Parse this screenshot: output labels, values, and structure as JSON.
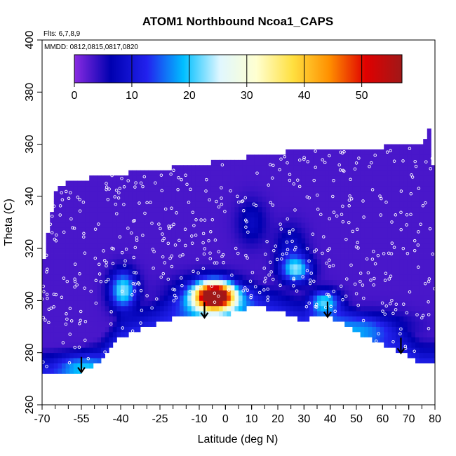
{
  "chart_data": {
    "type": "heatmap",
    "title": "ATOM1 Northbound Ncoa1_CAPS",
    "flights_note": "Flts: 6,7,8,9",
    "dates_note": "MMDD: 0812,0815,0817,0820",
    "xlabel": "Latitude (deg N)",
    "ylabel": "Theta (C)",
    "xlim": [
      -70,
      80
    ],
    "ylim": [
      260,
      400
    ],
    "x_ticks": [
      -70,
      -55,
      -40,
      -25,
      -10,
      0,
      10,
      20,
      30,
      40,
      50,
      60,
      70,
      80
    ],
    "x_tick_labels": [
      "-70",
      "-55",
      "-40",
      "-25",
      "-10",
      "0",
      "10",
      "20",
      "30",
      "40",
      "50",
      "60",
      "70",
      "80"
    ],
    "y_ticks": [
      260,
      280,
      300,
      320,
      340,
      360,
      380,
      400
    ],
    "y_tick_labels": [
      "260",
      "280",
      "300",
      "320",
      "340",
      "360",
      "380",
      "400"
    ],
    "colorbar": {
      "range": [
        0,
        57
      ],
      "ticks": [
        0,
        10,
        20,
        30,
        40,
        50
      ],
      "tick_labels": [
        "0",
        "10",
        "20",
        "30",
        "40",
        "50"
      ],
      "stops": [
        "#8a2be2",
        "#0000b0",
        "#2222ee",
        "#00bfff",
        "#e0f7ff",
        "#ffffd0",
        "#ffe040",
        "#ff9000",
        "#e00000",
        "#a01818"
      ]
    },
    "background_value": 3,
    "data_boundary": {
      "top": [
        [
          -70,
          312
        ],
        [
          -65,
          342
        ],
        [
          -60,
          346
        ],
        [
          -45,
          348
        ],
        [
          -30,
          350
        ],
        [
          -10,
          352
        ],
        [
          0,
          354
        ],
        [
          15,
          356
        ],
        [
          30,
          358
        ],
        [
          45,
          358
        ],
        [
          60,
          359
        ],
        [
          75,
          359
        ],
        [
          78,
          366
        ],
        [
          80,
          344
        ]
      ],
      "bottom": [
        [
          -70,
          272
        ],
        [
          -55,
          273
        ],
        [
          -48,
          276
        ],
        [
          -40,
          286
        ],
        [
          -30,
          290
        ],
        [
          -20,
          293
        ],
        [
          -10,
          294
        ],
        [
          0,
          294
        ],
        [
          10,
          298
        ],
        [
          20,
          296
        ],
        [
          30,
          292
        ],
        [
          36,
          295
        ],
        [
          40,
          294
        ],
        [
          50,
          288
        ],
        [
          60,
          283
        ],
        [
          68,
          280
        ],
        [
          75,
          276
        ],
        [
          80,
          276
        ]
      ]
    },
    "features": [
      {
        "name": "blob-southern-mid",
        "lat": -39,
        "theta": 304,
        "sx": 3.5,
        "sy": 5,
        "value": 20
      },
      {
        "name": "blob-equatorial-peak",
        "lat": -4,
        "theta": 302,
        "sx": 5,
        "sy": 3.5,
        "value": 56
      },
      {
        "name": "blob-equatorial-halo",
        "lat": -6,
        "theta": 301,
        "sx": 9,
        "sy": 5,
        "value": 15
      },
      {
        "name": "blob-northern-mid",
        "lat": 27,
        "theta": 312,
        "sx": 4,
        "sy": 3.5,
        "value": 18
      },
      {
        "name": "blob-northern-upper",
        "lat": 25,
        "theta": 320,
        "sx": 4,
        "sy": 6,
        "value": 6
      },
      {
        "name": "blob-north-38",
        "lat": 38,
        "theta": 300,
        "sx": 4,
        "sy": 3,
        "value": 14
      },
      {
        "name": "blob-north-high-band",
        "lat": 55,
        "theta": 290,
        "sx": 10,
        "sy": 4,
        "value": 8
      },
      {
        "name": "blob-south-pole-low",
        "lat": -55,
        "theta": 275,
        "sx": 6,
        "sy": 3,
        "value": 9
      },
      {
        "name": "blob-sh-stratosphere",
        "lat": 10,
        "theta": 330,
        "sx": 4,
        "sy": 6,
        "value": 5
      }
    ],
    "arrow_latitudes": [
      -55,
      -8,
      39,
      67
    ]
  }
}
